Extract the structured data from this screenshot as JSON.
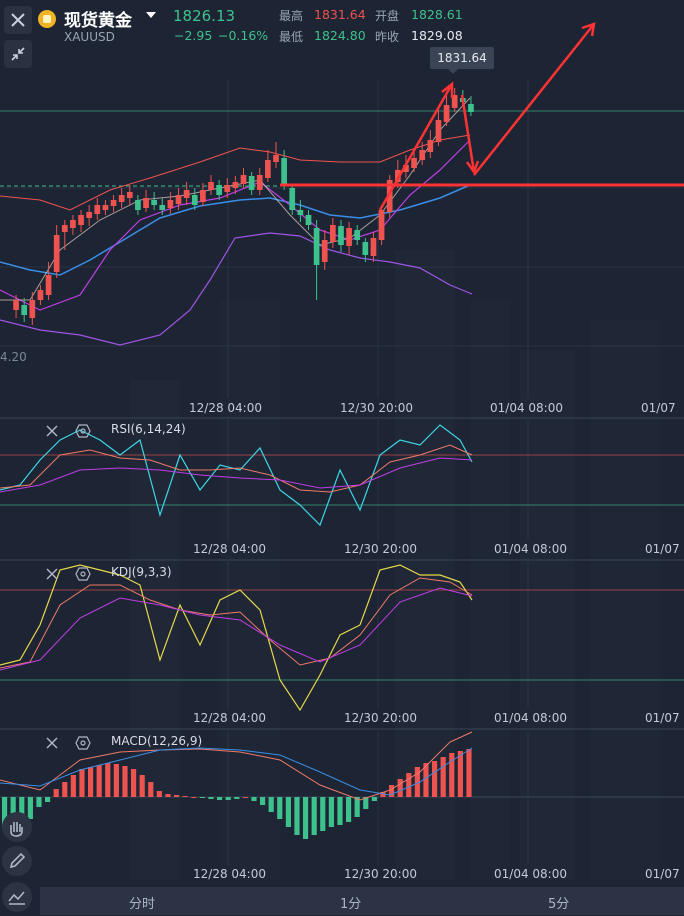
{
  "header": {
    "title": "现货黄金",
    "code": "XAUUSD",
    "price": "1826.13",
    "change": "−2.95",
    "change_pct": "−0.16%",
    "high_label": "最高",
    "high": "1831.64",
    "open_label": "开盘",
    "open": "1828.61",
    "low_label": "最低",
    "low": "1824.80",
    "prev_label": "昨收",
    "prev_close": "1829.08",
    "icons": [
      "close-icon",
      "shrink-icon",
      "gold-coin-icon",
      "dropdown-caret-icon"
    ]
  },
  "main_chart": {
    "peak_tag": "1831.64",
    "left_price_label": "4.20",
    "time_labels": [
      "12/28 04:00",
      "12/30 20:00",
      "01/04 08:00",
      "01/07"
    ]
  },
  "rsi": {
    "label": "RSI(6,14,24)",
    "time_labels": [
      "12/28 04:00",
      "12/30 20:00",
      "01/04 08:00",
      "01/07"
    ]
  },
  "kdj": {
    "label": "KDJ(9,3,3)",
    "time_labels": [
      "12/28 04:00",
      "12/30 20:00",
      "01/04 08:00",
      "01/07"
    ]
  },
  "macd": {
    "label": "MACD(12,26,9)",
    "time_labels": [
      "12/28 04:00",
      "12/30 20:00",
      "01/04 08:00",
      "01/07"
    ]
  },
  "tabs": [
    "分时",
    "1分",
    "5分"
  ],
  "colors": {
    "up": "#ef5350",
    "down": "#3ec28d",
    "background": "#1d2433",
    "annotation": "#ff3333"
  }
}
